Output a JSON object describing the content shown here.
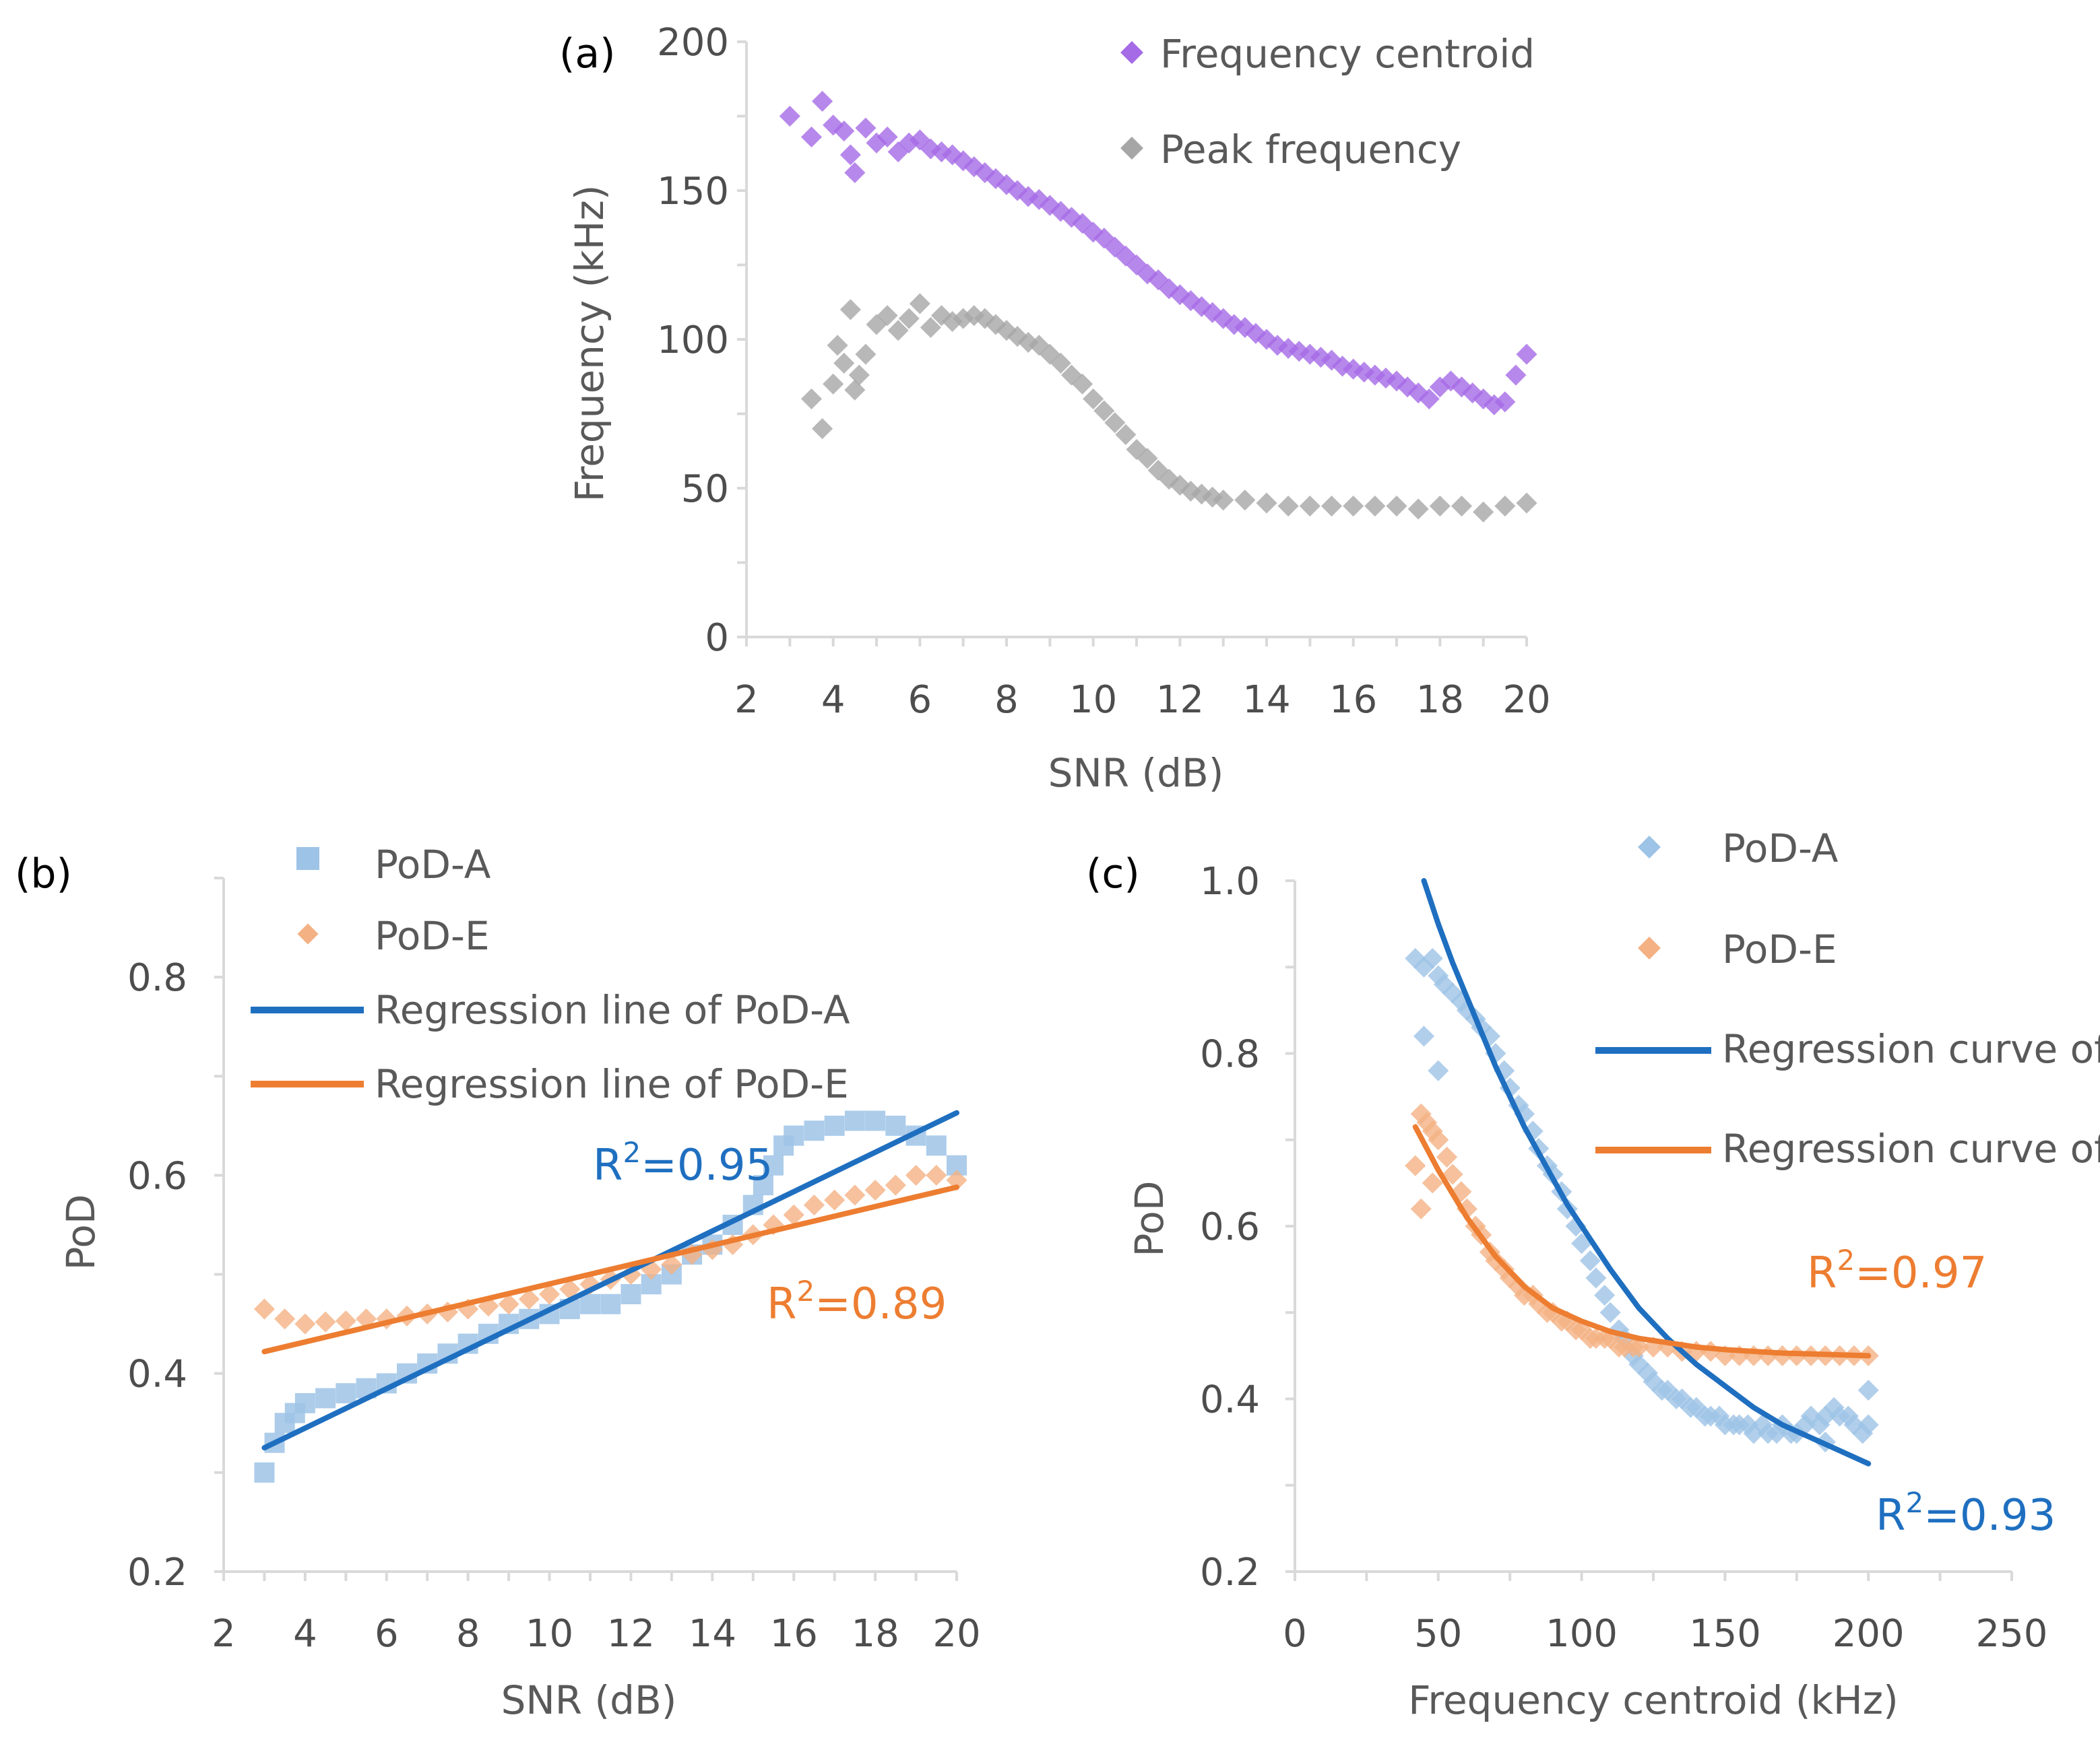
{
  "chart_data": [
    {
      "id": "a",
      "panel_label": "(a)",
      "type": "scatter",
      "xlabel": "SNR (dB)",
      "ylabel": "Frequency (kHz)",
      "xlim": [
        2,
        20
      ],
      "ylim": [
        0,
        200
      ],
      "xticks": [
        "2",
        "4",
        "6",
        "8",
        "10",
        "12",
        "14",
        "16",
        "18",
        "20"
      ],
      "yticks": [
        "0",
        "50",
        "100",
        "150",
        "200"
      ],
      "legend": [
        "Frequency centroid",
        "Peak frequency"
      ],
      "series": [
        {
          "name": "Frequency centroid",
          "color": "#a56ae6",
          "marker": "diamond",
          "x": [
            3,
            3.5,
            3.75,
            4,
            4.25,
            4.4,
            4.5,
            4.75,
            5,
            5.25,
            5.5,
            5.75,
            6,
            6.25,
            6.5,
            6.75,
            7,
            7.25,
            7.5,
            7.75,
            8,
            8.25,
            8.5,
            8.75,
            9,
            9.25,
            9.5,
            9.75,
            10,
            10.25,
            10.5,
            10.75,
            11,
            11.25,
            11.5,
            11.75,
            12,
            12.25,
            12.5,
            12.75,
            13,
            13.25,
            13.5,
            13.75,
            14,
            14.25,
            14.5,
            14.75,
            15,
            15.25,
            15.5,
            15.75,
            16,
            16.25,
            16.5,
            16.75,
            17,
            17.25,
            17.5,
            17.75,
            18,
            18.25,
            18.5,
            18.75,
            19,
            19.25,
            19.5,
            19.75,
            20
          ],
          "y": [
            175,
            168,
            180,
            172,
            170,
            162,
            156,
            171,
            166,
            168,
            163,
            166,
            167,
            164,
            163,
            162,
            160,
            158,
            156,
            154,
            152,
            150,
            148,
            147,
            145,
            143,
            141,
            139,
            136,
            134,
            131,
            128,
            125,
            122,
            120,
            117,
            115,
            113,
            111,
            109,
            107,
            105,
            104,
            102,
            100,
            98,
            97,
            96,
            95,
            94,
            93,
            91,
            90,
            89,
            88,
            87,
            86,
            84,
            82,
            80,
            84,
            86,
            84,
            82,
            80,
            78,
            79,
            88,
            95
          ]
        },
        {
          "name": "Peak frequency",
          "color": "#a6a6a6",
          "marker": "diamond",
          "x": [
            3.5,
            3.75,
            4,
            4.1,
            4.25,
            4.4,
            4.5,
            4.6,
            4.75,
            5,
            5.25,
            5.5,
            5.75,
            6,
            6.25,
            6.5,
            6.75,
            7,
            7.25,
            7.5,
            7.75,
            8,
            8.25,
            8.5,
            8.75,
            9,
            9.25,
            9.5,
            9.75,
            10,
            10.25,
            10.5,
            10.75,
            11,
            11.25,
            11.5,
            11.75,
            12,
            12.25,
            12.5,
            12.75,
            13,
            13.5,
            14,
            14.5,
            15,
            15.5,
            16,
            16.5,
            17,
            17.5,
            18,
            18.5,
            19,
            19.5,
            20
          ],
          "y": [
            80,
            70,
            85,
            98,
            92,
            110,
            83,
            88,
            95,
            105,
            108,
            103,
            107,
            112,
            104,
            108,
            106,
            107,
            108,
            107,
            105,
            103,
            101,
            99,
            98,
            95,
            92,
            88,
            85,
            80,
            76,
            72,
            68,
            63,
            60,
            56,
            53,
            51,
            49,
            48,
            47,
            46,
            46,
            45,
            44,
            44,
            44,
            44,
            44,
            44,
            43,
            44,
            44,
            42,
            44,
            45
          ]
        }
      ]
    },
    {
      "id": "b",
      "panel_label": "(b)",
      "type": "scatter",
      "xlabel": "SNR (dB)",
      "ylabel": "PoD",
      "xlim": [
        2,
        20
      ],
      "ylim": [
        0.2,
        0.9
      ],
      "xticks": [
        "2",
        "4",
        "6",
        "8",
        "10",
        "12",
        "14",
        "16",
        "18",
        "20"
      ],
      "yticks": [
        "0.2",
        "0.4",
        "0.6",
        "0.8"
      ],
      "legend": [
        "PoD-A",
        "PoD-E",
        "Regression line of PoD-A",
        "Regression line of PoD-E"
      ],
      "series": [
        {
          "name": "PoD-A",
          "color": "#9dc3e6",
          "marker": "square",
          "x": [
            3,
            3.25,
            3.5,
            3.75,
            4,
            4.5,
            5,
            5.5,
            6,
            6.5,
            7,
            7.5,
            8,
            8.5,
            9,
            9.5,
            10,
            10.5,
            11,
            11.5,
            12,
            12.5,
            13,
            13.5,
            14,
            14.5,
            15,
            15.25,
            15.5,
            15.75,
            16,
            16.5,
            17,
            17.5,
            18,
            18.5,
            19,
            19.5,
            20
          ],
          "y": [
            0.3,
            0.33,
            0.35,
            0.36,
            0.37,
            0.375,
            0.38,
            0.385,
            0.39,
            0.4,
            0.41,
            0.42,
            0.43,
            0.44,
            0.45,
            0.455,
            0.46,
            0.465,
            0.47,
            0.47,
            0.48,
            0.49,
            0.5,
            0.52,
            0.53,
            0.55,
            0.57,
            0.59,
            0.61,
            0.63,
            0.64,
            0.645,
            0.65,
            0.655,
            0.655,
            0.65,
            0.64,
            0.63,
            0.61
          ]
        },
        {
          "name": "PoD-E",
          "color": "#f4b183",
          "marker": "diamond",
          "x": [
            3,
            3.5,
            4,
            4.5,
            5,
            5.5,
            6,
            6.5,
            7,
            7.5,
            8,
            8.5,
            9,
            9.5,
            10,
            10.5,
            11,
            11.5,
            12,
            12.5,
            13,
            13.5,
            14,
            14.5,
            15,
            15.5,
            16,
            16.5,
            17,
            17.5,
            18,
            18.5,
            19,
            19.5,
            20
          ],
          "y": [
            0.465,
            0.455,
            0.45,
            0.452,
            0.453,
            0.455,
            0.455,
            0.458,
            0.46,
            0.462,
            0.465,
            0.468,
            0.47,
            0.475,
            0.48,
            0.485,
            0.49,
            0.495,
            0.5,
            0.505,
            0.51,
            0.52,
            0.525,
            0.53,
            0.54,
            0.55,
            0.56,
            0.57,
            0.575,
            0.58,
            0.585,
            0.59,
            0.6,
            0.6,
            0.595
          ]
        }
      ],
      "lines": [
        {
          "name": "Regression line of PoD-A",
          "color": "#1f6fc0",
          "x": [
            3,
            20
          ],
          "y": [
            0.325,
            0.663
          ]
        },
        {
          "name": "Regression line of PoD-E",
          "color": "#ed7d31",
          "x": [
            3,
            20
          ],
          "y": [
            0.422,
            0.588
          ]
        }
      ],
      "annotations": [
        {
          "text": "R2=0.95",
          "base": "R",
          "sup": "2",
          "rest": "=0.95",
          "color": "#1f6fc0"
        },
        {
          "text": "R2=0.89",
          "base": "R",
          "sup": "2",
          "rest": "=0.89",
          "color": "#ed7d31"
        }
      ]
    },
    {
      "id": "c",
      "panel_label": "(c)",
      "type": "scatter",
      "xlabel": "Frequency centroid (kHz)",
      "ylabel": "PoD",
      "xlim": [
        0,
        250
      ],
      "ylim": [
        0.2,
        1.0
      ],
      "xticks": [
        "0",
        "50",
        "100",
        "150",
        "200",
        "250"
      ],
      "yticks": [
        "0.2",
        "0.4",
        "0.6",
        "0.8",
        "1.0"
      ],
      "legend": [
        "PoD-A",
        "PoD-E",
        "Regression curve of PoD-A",
        "Regression curve of PoD-E"
      ],
      "series": [
        {
          "name": "PoD-A",
          "color": "#9dc3e6",
          "marker": "diamond",
          "x": [
            42,
            45,
            48,
            50,
            52,
            55,
            58,
            60,
            63,
            65,
            68,
            70,
            73,
            75,
            78,
            80,
            83,
            85,
            88,
            90,
            93,
            95,
            98,
            100,
            103,
            105,
            108,
            110,
            113,
            115,
            118,
            120,
            123,
            125,
            128,
            130,
            133,
            135,
            138,
            140,
            143,
            145,
            148,
            150,
            153,
            155,
            158,
            160,
            163,
            165,
            168,
            170,
            173,
            175,
            178,
            180,
            183,
            185,
            188,
            190,
            193,
            195,
            198,
            200,
            45,
            50,
            200,
            185
          ],
          "y": [
            0.91,
            0.9,
            0.91,
            0.89,
            0.88,
            0.87,
            0.86,
            0.85,
            0.84,
            0.83,
            0.82,
            0.8,
            0.78,
            0.76,
            0.74,
            0.73,
            0.71,
            0.69,
            0.67,
            0.66,
            0.64,
            0.62,
            0.6,
            0.58,
            0.56,
            0.54,
            0.52,
            0.5,
            0.48,
            0.47,
            0.45,
            0.44,
            0.43,
            0.42,
            0.41,
            0.41,
            0.4,
            0.4,
            0.39,
            0.39,
            0.38,
            0.38,
            0.38,
            0.37,
            0.37,
            0.37,
            0.37,
            0.36,
            0.37,
            0.36,
            0.36,
            0.37,
            0.36,
            0.36,
            0.37,
            0.38,
            0.37,
            0.38,
            0.39,
            0.38,
            0.38,
            0.37,
            0.36,
            0.37,
            0.82,
            0.78,
            0.41,
            0.35
          ]
        },
        {
          "name": "PoD-E",
          "color": "#f4b183",
          "marker": "diamond",
          "x": [
            42,
            44,
            46,
            48,
            50,
            53,
            55,
            58,
            60,
            63,
            65,
            68,
            70,
            73,
            75,
            78,
            80,
            83,
            85,
            88,
            90,
            93,
            95,
            98,
            100,
            103,
            105,
            108,
            110,
            113,
            115,
            118,
            120,
            125,
            130,
            135,
            140,
            145,
            150,
            155,
            160,
            165,
            170,
            175,
            180,
            185,
            190,
            195,
            200,
            44,
            48
          ],
          "y": [
            0.67,
            0.73,
            0.72,
            0.71,
            0.7,
            0.68,
            0.66,
            0.64,
            0.62,
            0.6,
            0.59,
            0.57,
            0.56,
            0.55,
            0.54,
            0.53,
            0.52,
            0.52,
            0.51,
            0.5,
            0.5,
            0.49,
            0.49,
            0.48,
            0.48,
            0.47,
            0.47,
            0.47,
            0.47,
            0.46,
            0.46,
            0.46,
            0.46,
            0.46,
            0.46,
            0.455,
            0.455,
            0.455,
            0.45,
            0.45,
            0.45,
            0.45,
            0.45,
            0.45,
            0.45,
            0.45,
            0.45,
            0.45,
            0.45,
            0.62,
            0.65
          ]
        }
      ],
      "curves": [
        {
          "name": "Regression curve of PoD-A",
          "color": "#1f6fc0",
          "x": [
            45,
            50,
            55,
            60,
            65,
            70,
            75,
            80,
            85,
            90,
            95,
            100,
            110,
            120,
            130,
            140,
            150,
            160,
            170,
            180,
            190,
            200
          ],
          "y": [
            1.0,
            0.95,
            0.905,
            0.865,
            0.825,
            0.785,
            0.75,
            0.715,
            0.685,
            0.655,
            0.625,
            0.6,
            0.55,
            0.505,
            0.47,
            0.44,
            0.415,
            0.39,
            0.37,
            0.355,
            0.34,
            0.325
          ]
        },
        {
          "name": "Regression curve of PoD-E",
          "color": "#ed7d31",
          "x": [
            42,
            50,
            60,
            70,
            80,
            90,
            100,
            110,
            120,
            130,
            140,
            150,
            160,
            170,
            180,
            190,
            200
          ],
          "y": [
            0.715,
            0.665,
            0.61,
            0.565,
            0.53,
            0.505,
            0.49,
            0.478,
            0.47,
            0.465,
            0.46,
            0.457,
            0.455,
            0.453,
            0.452,
            0.451,
            0.45
          ]
        }
      ],
      "annotations": [
        {
          "text": "R2=0.97",
          "base": "R",
          "sup": "2",
          "rest": "=0.97",
          "color": "#ed7d31"
        },
        {
          "text": "R2=0.93",
          "base": "R",
          "sup": "2",
          "rest": "=0.93",
          "color": "#1f6fc0"
        }
      ]
    }
  ]
}
